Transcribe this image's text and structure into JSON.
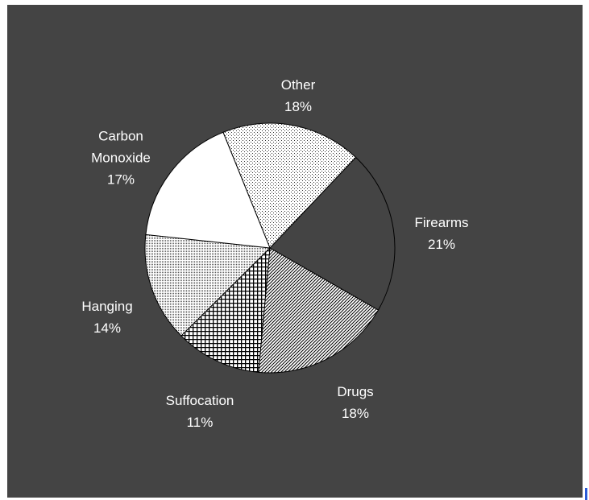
{
  "chart_data": {
    "type": "pie",
    "title": "",
    "slices": [
      {
        "label": "Other",
        "value": 18,
        "display": "18%",
        "fill": "dots"
      },
      {
        "label": "Firearms",
        "value": 21,
        "display": "21%",
        "fill": "solid"
      },
      {
        "label": "Drugs",
        "value": 18,
        "display": "18%",
        "fill": "diagonal"
      },
      {
        "label": "Suffocation",
        "value": 11,
        "display": "11%",
        "fill": "crosshatch"
      },
      {
        "label": "Hanging",
        "value": 14,
        "display": "14%",
        "fill": "fine-dots"
      },
      {
        "label": "Carbon\nMonoxide",
        "value": 17,
        "display": "17%",
        "fill": "white"
      }
    ],
    "colors": {
      "background": "#444444",
      "slice_fill": "#ffffff",
      "firearms_fill": "#444444",
      "outline": "#000000",
      "text": "#ffffff"
    }
  }
}
